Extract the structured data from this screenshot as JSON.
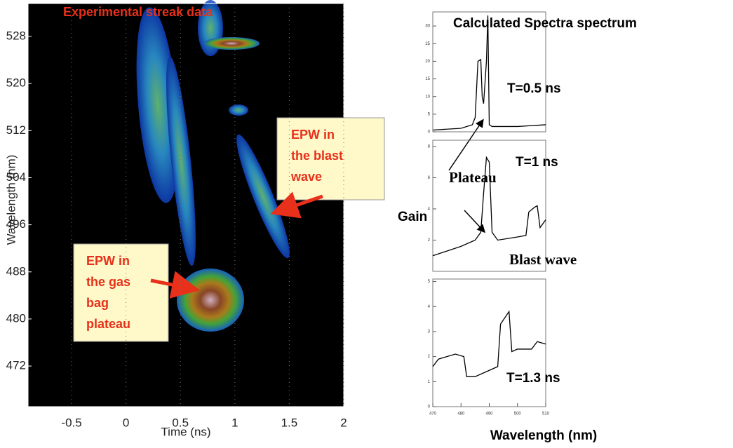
{
  "chart_data": [
    {
      "type": "image",
      "title": "Experimental streak data",
      "xlabel": "Time (ns)",
      "ylabel": "Wavelength (nm)",
      "xlim": [
        -0.9,
        2.0
      ],
      "ylim": [
        465.1,
        533.6
      ],
      "xticks": [
        -0.5,
        0,
        0.5,
        1,
        1.5,
        2
      ],
      "yticks": [
        472,
        480,
        488,
        496,
        504,
        512,
        520,
        528
      ],
      "annotations": [
        [
          "EPW in",
          "the blast",
          "wave"
        ],
        [
          "EPW in",
          "the gas",
          "bag",
          "plateau"
        ]
      ]
    },
    {
      "type": "line",
      "title": "Calculated Spectra spectrum",
      "label": "T=0.5 ns",
      "color": "#000",
      "xlim": [
        470,
        510
      ],
      "ylim": [
        0,
        34
      ],
      "yticks": [
        0,
        5,
        10,
        15,
        20,
        25,
        30
      ],
      "x": [
        470,
        480,
        484,
        485,
        486,
        487,
        487.5,
        488,
        489,
        489.5,
        490,
        491,
        500,
        510
      ],
      "values": [
        0.5,
        1,
        2,
        4,
        20,
        20.5,
        10,
        8,
        20,
        33,
        2,
        1.5,
        1.5,
        2
      ]
    },
    {
      "type": "line",
      "label": "T=1 ns",
      "color": "#000",
      "annotations": [
        "Plateau",
        "Gain",
        "Blast wave"
      ],
      "xlim": [
        470,
        510
      ],
      "ylim": [
        0,
        8.4
      ],
      "yticks": [
        2,
        4,
        6,
        8
      ],
      "x": [
        470,
        480,
        485,
        487,
        488,
        489,
        490,
        491,
        493,
        500,
        503,
        504,
        506,
        507,
        508,
        510
      ],
      "values": [
        1,
        1.6,
        2,
        2.5,
        5,
        7.3,
        7,
        2.5,
        2,
        2.2,
        2.3,
        3.8,
        4.1,
        4.2,
        2.8,
        3.3
      ]
    },
    {
      "type": "line",
      "label": "T=1.3 ns",
      "xlabel": "Wavelength (nm)",
      "color": "#000",
      "xlim": [
        470,
        510
      ],
      "ylim": [
        0,
        5.1
      ],
      "yticks": [
        0,
        1,
        2,
        3,
        4,
        5
      ],
      "xticks": [
        470,
        480,
        490,
        500,
        510
      ],
      "x": [
        470,
        472,
        478,
        481,
        482,
        485,
        493,
        494,
        497,
        498,
        500,
        505,
        507,
        510
      ],
      "values": [
        1.6,
        1.9,
        2.1,
        2.0,
        1.2,
        1.2,
        1.6,
        3.3,
        3.8,
        2.2,
        2.3,
        2.3,
        2.6,
        2.5
      ]
    }
  ]
}
